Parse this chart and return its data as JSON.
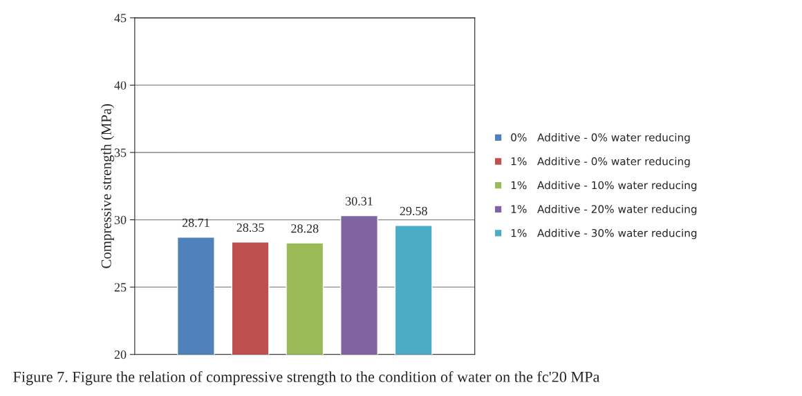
{
  "chart_data": {
    "type": "bar",
    "ylabel": "Compressive strength (MPa)",
    "categories": [
      null
    ],
    "series": [
      {
        "name": "0%   Additive - 0% water reducing",
        "color": "#4f81bd",
        "values": [
          28.71
        ]
      },
      {
        "name": "1%   Additive - 0% water reducing",
        "color": "#c0504d",
        "values": [
          28.35
        ]
      },
      {
        "name": "1%   Additive - 10% water reducing",
        "color": "#9bbb59",
        "values": [
          28.28
        ]
      },
      {
        "name": "1%   Additive - 20% water reducing",
        "color": "#8064a2",
        "values": [
          30.31
        ]
      },
      {
        "name": "1%   Additive - 30% water reducing",
        "color": "#4bacc6",
        "values": [
          29.58
        ]
      }
    ],
    "ylim": [
      20,
      45
    ],
    "yticks": [
      20,
      25,
      30,
      35,
      40,
      45
    ],
    "grid": "y",
    "legend": "right",
    "data_labels": true,
    "tick_labels": "y",
    "annotations": [
      "Figure 7. Figure the relation of compressive strength to the condition of water on the fc'20 MPa"
    ]
  }
}
